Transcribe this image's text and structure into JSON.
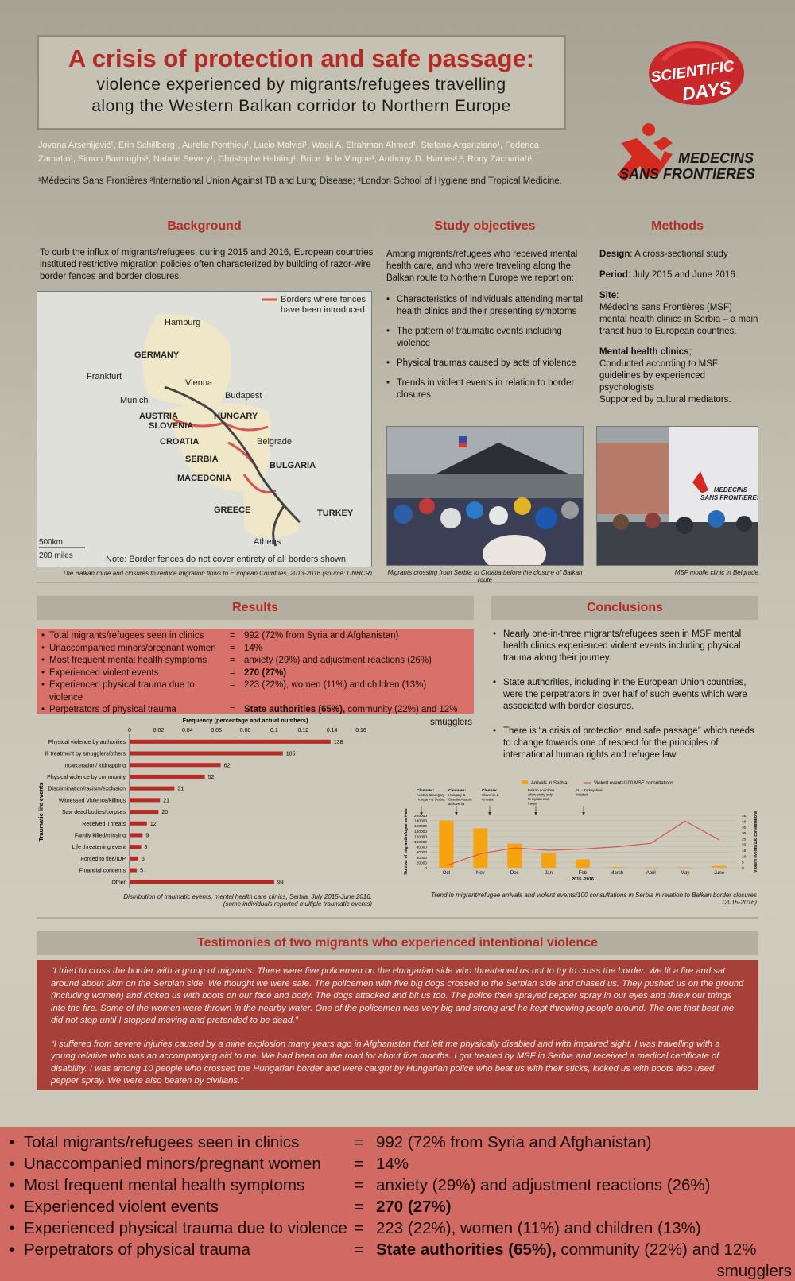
{
  "header": {
    "title": "A crisis of protection and safe passage:",
    "subtitle_line1": "violence experienced by migrants/refugees travelling",
    "subtitle_line2": "along the Western Balkan corridor to Northern Europe",
    "authors": "Jovana Arsenijević¹, Erin Schillberg¹, Aurelie Ponthieu¹, Lucio Malvisi¹, Waeil A. Elrahman Ahmed¹, Stefano Argenziano¹, Federica Zamatto¹, Simon Burroughs¹, Natalie Severy¹, Christophe Hebting¹, Brice de le Vingne¹, Anthony. D. Harries²,³, Rony Zachariah¹",
    "affiliations": "¹Médecins Sans Frontières ²International Union Against TB and Lung Disease; ³London School of Hygiene and Tropical Medicine.",
    "logo_sd_line1": "SCIENTIFIC",
    "logo_sd_line2": "DAYS",
    "logo_msf_line1": "MEDECINS",
    "logo_msf_line2": "SANS FRONTIERES"
  },
  "background": {
    "heading": "Background",
    "text": "To curb the influx of migrants/refugees, during 2015 and 2016, European countries instituted restrictive migration policies often characterized by building of razor-wire border fences and border closures.",
    "map_legend": "Borders where fences have been introduced",
    "map_labels": [
      "Hamburg",
      "GERMANY",
      "Frankfurt",
      "Vienna",
      "Budapest",
      "Munich",
      "AUSTRIA",
      "HUNGARY",
      "SLOVENIA",
      "CROATIA",
      "Belgrade",
      "SERBIA",
      "BULGARIA",
      "MACEDONIA",
      "GREECE",
      "TURKEY",
      "Athens"
    ],
    "map_scale_km": "500km",
    "map_scale_mi": "200 miles",
    "map_note": "Note: Border fences do not cover entirety of all borders shown",
    "caption": "The Balkan route and closures to reduce migration flows to European Countries, 2013-2016 (source: UNHCR)"
  },
  "objectives": {
    "heading": "Study objectives",
    "intro": "Among migrants/refugees who received mental health care, and who were traveling along the Balkan route to Northern Europe we report on:",
    "items": [
      "Characteristics of individuals attending mental health clinics and their presenting symptoms",
      "The pattern of traumatic events including violence",
      "Physical traumas caused by acts of violence",
      "Trends in violent events in relation to border closures."
    ],
    "photo_caption": "Migrants crossing from Serbia to Croatia before the closure of Balkan route"
  },
  "methods": {
    "heading": "Methods",
    "design_label": "Design",
    "design_value": ":  A cross-sectional study",
    "period_label": "Period",
    "period_value": ": July 2015 and June 2016",
    "site_label": "Site",
    "site_value": "Médecins sans Frontières (MSF) mental health clinics in Serbia – a main transit hub to European countries.",
    "clinics_label": "Mental health clinics",
    "clinics_value": "Conducted according to MSF guidelines by experienced psychologists",
    "clinics_value2": "Supported by cultural mediators.",
    "photo_sign1": "MEDECINS",
    "photo_sign2": "SANS FRONTIERES",
    "photo_caption": "MSF mobile clinic in Belgrade"
  },
  "results": {
    "heading": "Results",
    "rows": [
      {
        "k": "Total migrants/refugees seen in clinics",
        "e": "=",
        "v": "992 (72% from Syria and Afghanistan)"
      },
      {
        "k": "Unaccompanied minors/pregnant women",
        "e": "=",
        "v": "14%"
      },
      {
        "k": "Most frequent mental health symptoms",
        "e": "=",
        "v": "anxiety (29%) and adjustment reactions (26%)"
      },
      {
        "k": "Experienced violent events",
        "e": "=",
        "v": "270 (27%)"
      },
      {
        "k": "Experienced physical trauma due to violence",
        "e": "=",
        "v": "223 (22%), women (11%) and children (13%)"
      },
      {
        "k": "Perpetrators of physical trauma",
        "e": "=",
        "vb": "State authorities (65%),",
        "v": " community (22%) and 12%"
      }
    ],
    "tail": "smugglers",
    "chart_caption1": "Distribution of traumatic events, mental health care clinics, Serbia, July 2015-June 2016.",
    "chart_caption2": "(some individuals reported multiple traumatic events)"
  },
  "conclusions": {
    "heading": "Conclusions",
    "items": [
      "Nearly one-in-three migrants/refugees seen in MSF mental health clinics experienced violent events including physical trauma along their journey.",
      "State authorities, including in the European Union countries, were the perpetrators in over half of such events which were associated with border closures.",
      "There is “a crisis of protection and safe passage” which needs to change towards one of respect for the principles of international human rights and refugee law."
    ],
    "chart_caption1": "Trend in migrant/refugee arrivals and violent events/100 consultations in Serbia in relation to Balkan border closures",
    "chart_caption2": "(2015-2016)"
  },
  "testimonies": {
    "heading": "Testimonies of two migrants who experienced intentional violence",
    "quote1": "“I tried to cross the border with a group of migrants. There were five policemen on the Hungarian side who threatened us not to try to cross the border. We lit a fire and sat around about 2km on the Serbian side. We thought we were safe. The policemen with five big dogs crossed to the Serbian side and chased us. They pushed us on the ground (including women) and kicked us with boots on our face and body. The dogs attacked and bit us too. The police then sprayed pepper spray in our eyes and threw our things into the fire. Some of the women were thrown in the nearby water. One of the policemen was very big and strong and he kept throwing people around. The one that beat me did not stop until I stopped moving and pretended to be dead.”",
    "quote2": "“I suffered from severe injuries caused by a mine explosion many years ago in Afghanistan that left me physically disabled and with impaired sight. I was travelling with a young relative who was an accompanying aid to me. We had been on the road for about five months. I got treated by MSF in Serbia and received a medical certificate of disability. I was among 10 people who crossed the Hungarian border and were caught by Hungarian police who beat us with their sticks, kicked us with boots also used pepper spray. We were also beaten by civilians.”"
  },
  "chart_data": [
    {
      "type": "bar",
      "orientation": "horizontal",
      "title": "Frequency (percentage and actual numbers)",
      "ylabel": "Traumatic life events",
      "xlim": [
        0,
        0.16
      ],
      "xticks": [
        "0",
        "0.02",
        "0.04",
        "0.06",
        "0.08",
        "0.1",
        "0.12",
        "0.14",
        "0.16"
      ],
      "categories": [
        "Physical violence by authorities",
        "Ill treatment by smugglers/others",
        "Incarceration/ kidnapping",
        "Physical violence by community",
        "Discrimination/racism/exclusion",
        "Witnessed Violence/killings",
        "Saw dead bodies/corpses",
        "Received Threats",
        "Family killed/missing",
        "Life threatening  event",
        "Forced to flee/IDP",
        "Financial concerns",
        "Other"
      ],
      "values": [
        138,
        105,
        62,
        52,
        31,
        21,
        20,
        12,
        9,
        8,
        6,
        5,
        99
      ],
      "fractions": [
        0.139,
        0.106,
        0.063,
        0.052,
        0.031,
        0.021,
        0.02,
        0.012,
        0.009,
        0.008,
        0.006,
        0.005,
        0.1
      ],
      "color": "#b52a25"
    },
    {
      "type": "bar+line",
      "categories": [
        "Oct",
        "Nov",
        "Dec",
        "Jan",
        "Feb",
        "March",
        "April",
        "May",
        "June"
      ],
      "xlabel": "2015 -2016",
      "ylabel": "Number of migrant/refugee arrivals",
      "y2label": "Violent events/100 consultations",
      "yticks": [
        "0",
        "20000",
        "40000",
        "60000",
        "80000",
        "100000",
        "120000",
        "140000",
        "160000",
        "180000",
        "200000"
      ],
      "y2ticks": [
        "0",
        "5",
        "10",
        "15",
        "20",
        "25",
        "30",
        "35",
        "40",
        "45"
      ],
      "ylim": [
        0,
        200000
      ],
      "y2lim": [
        0,
        45
      ],
      "series": [
        {
          "name": "Arrivals in Serbia",
          "kind": "bar",
          "color": "#f5a30f",
          "values": [
            180000,
            150000,
            92000,
            55000,
            32000,
            3000,
            1500,
            2000,
            7000
          ]
        },
        {
          "name": "Violent events/100 MSF consultations",
          "kind": "line",
          "color": "#d9544d",
          "values": [
            2,
            12,
            17,
            15,
            16,
            18,
            21,
            40,
            24
          ]
        }
      ],
      "annotations": [
        {
          "title": "Closures:",
          "text": "Austria &Hungary Hungary & Serbia",
          "at": "Oct"
        },
        {
          "title": "Closures:",
          "text": "Hungary & Croatia Austria &Slovenia",
          "at": "Oct"
        },
        {
          "title": "Closure:",
          "text": "Slovenia & Croatia",
          "at": "Nov"
        },
        {
          "title": "",
          "text": "Balkan countries allow entry only to Syrian and Iraqis",
          "at": "Dec"
        },
        {
          "title": "",
          "text": "EU - Turkey deal initiated",
          "at": "Feb"
        }
      ]
    }
  ],
  "bottom_panel": {
    "rows": [
      {
        "k": "Total migrants/refugees seen in clinics",
        "e": "=",
        "v": "992 (72% from Syria and Afghanistan)"
      },
      {
        "k": "Unaccompanied minors/pregnant women",
        "e": "=",
        "v": "14%"
      },
      {
        "k": "Most frequent mental health symptoms",
        "e": "=",
        "v": "anxiety (29%) and adjustment reactions (26%)"
      },
      {
        "k": "Experienced violent events",
        "e": "=",
        "v": "270 (27%)"
      },
      {
        "k": "Experienced physical trauma due to violence",
        "e": "=",
        "v": "223 (22%), women (11%) and children (13%)"
      },
      {
        "k": "Perpetrators of physical trauma",
        "e": "=",
        "vb": "State authorities (65%),",
        "v": " community (22%) and 12%"
      }
    ],
    "tail": "smugglers"
  }
}
